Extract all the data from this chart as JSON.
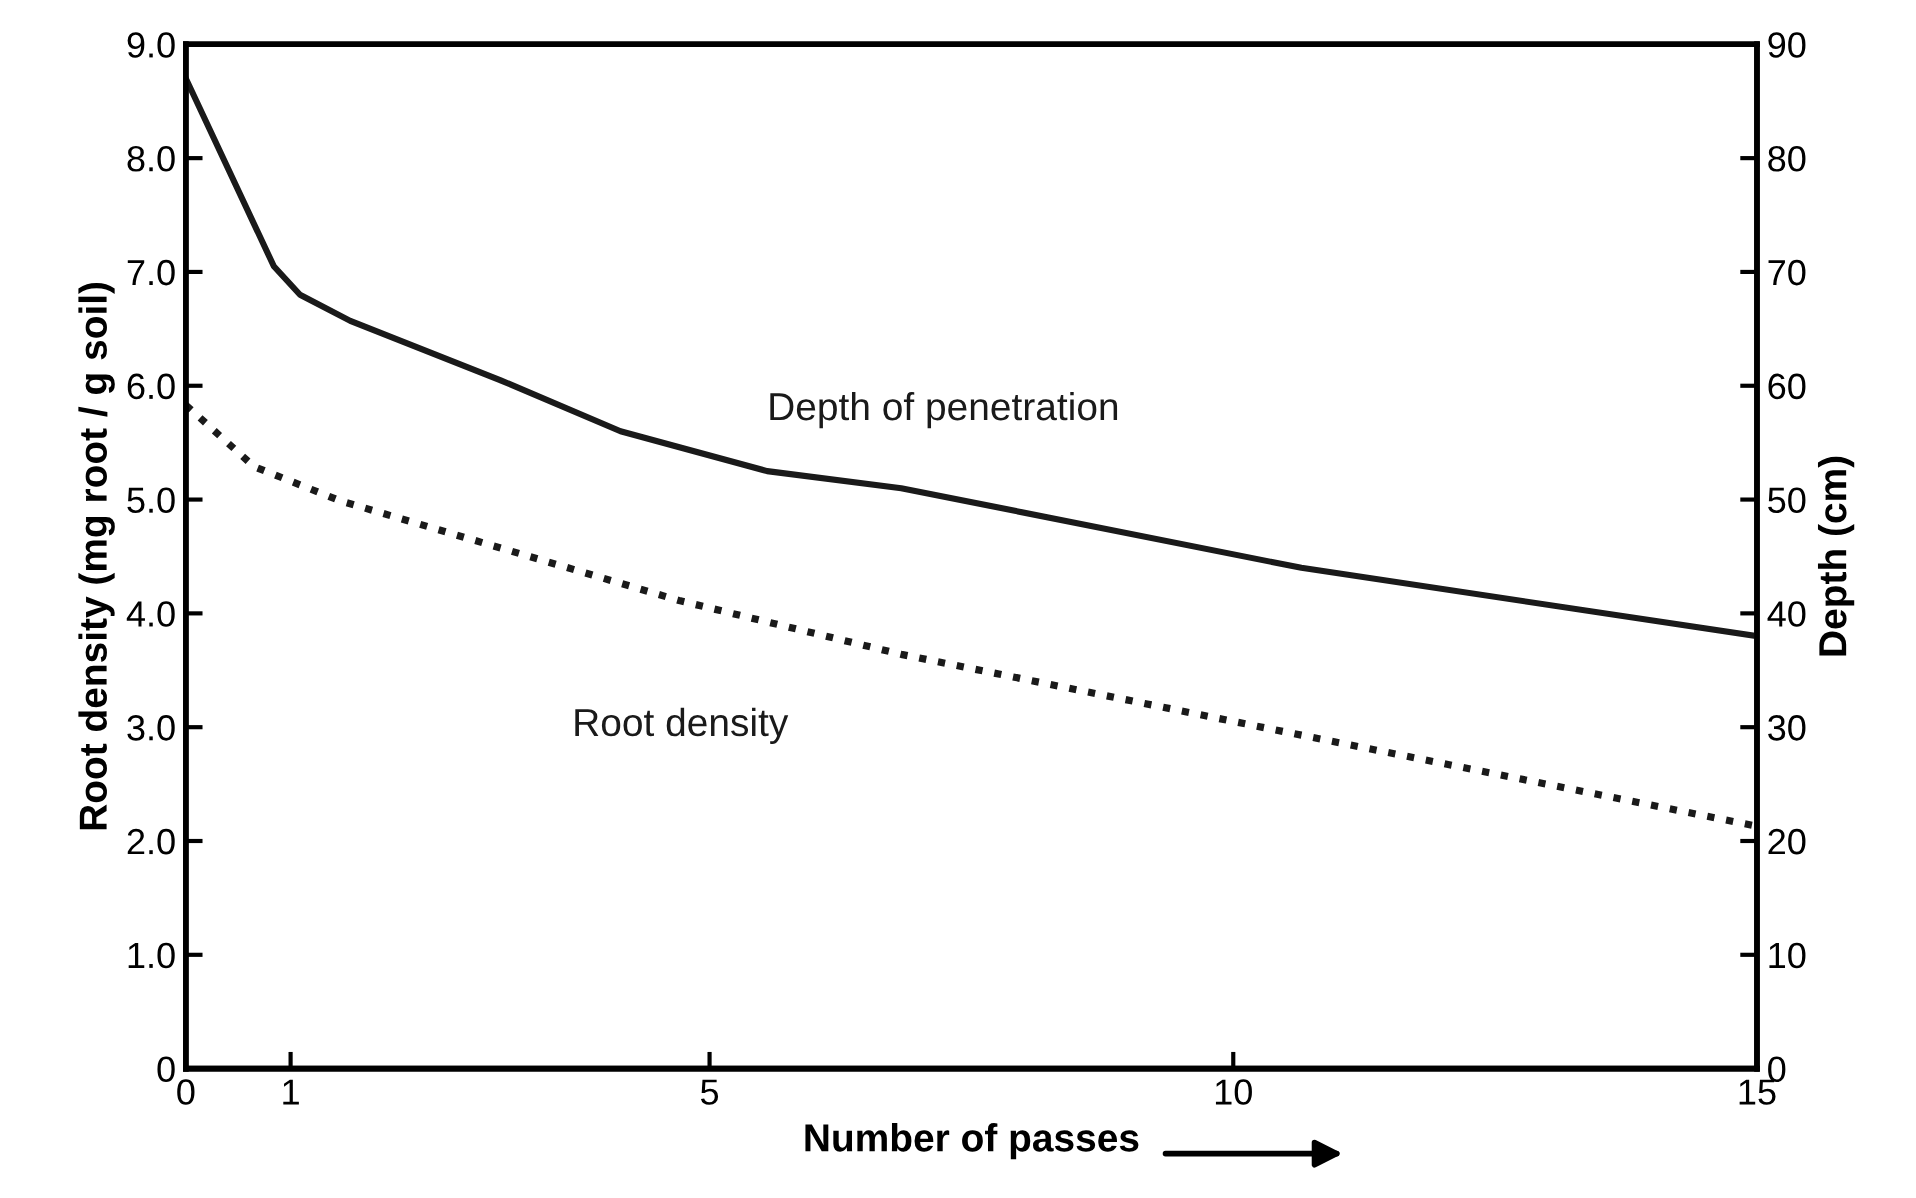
{
  "chart_data": {
    "type": "line",
    "xlabel": "Number of passes",
    "ylabel": "Root density (mg root / g soil)",
    "y2label": "Depth (cm)",
    "xlim": [
      0,
      15
    ],
    "xticks": [
      0,
      1,
      5,
      10,
      15
    ],
    "ylim": [
      0,
      9
    ],
    "yticks": [
      {
        "value": 0,
        "label": "0"
      },
      {
        "value": 1,
        "label": "1.0"
      },
      {
        "value": 2,
        "label": "2.0"
      },
      {
        "value": 3,
        "label": "3.0"
      },
      {
        "value": 4,
        "label": "4.0"
      },
      {
        "value": 5,
        "label": "5.0"
      },
      {
        "value": 6,
        "label": "6.0"
      },
      {
        "value": 7,
        "label": "7.0"
      },
      {
        "value": 8,
        "label": "8.0"
      },
      {
        "value": 9,
        "label": "9.0"
      }
    ],
    "y2lim": [
      0,
      90
    ],
    "y2ticks": [
      0,
      10,
      20,
      30,
      40,
      50,
      60,
      70,
      80,
      90
    ],
    "grid": false,
    "legend": false,
    "series": [
      {
        "name": "Depth of penetration",
        "color": "#1a1a1a",
        "axis": "y2",
        "line_style": "solid",
        "x": [
          0,
          0.84,
          1.09,
          1.57,
          3.0,
          4.15,
          5.55,
          6.83,
          10.65,
          15
        ],
        "values": [
          87,
          70.5,
          68,
          65.7,
          60.5,
          56,
          52.5,
          51,
          44,
          38
        ]
      },
      {
        "name": "Root density",
        "color": "#1a1a1a",
        "line_style": "dotted",
        "x": [
          0,
          0.65,
          1.47,
          4.72,
          6.83,
          10.65,
          15
        ],
        "values": [
          5.83,
          5.29,
          4.99,
          4.11,
          3.64,
          2.93,
          2.13
        ]
      }
    ]
  }
}
